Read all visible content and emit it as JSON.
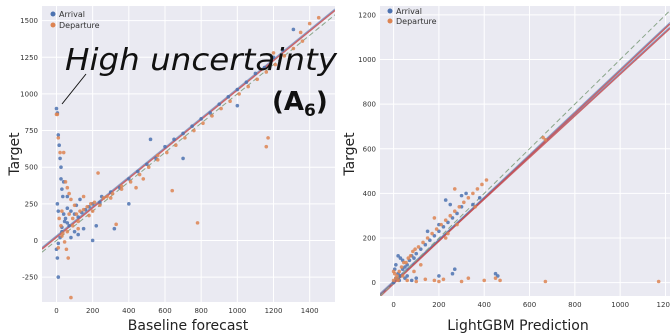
{
  "colors": {
    "arrival": "#4c72b0",
    "departure": "#dd8452",
    "plot_bg": "#eaeaf2",
    "grid": "#ffffff",
    "fit_line": "#c44e52",
    "diag_line": "#8aa58a"
  },
  "annotation": {
    "high_uncertainty": "High uncertainty",
    "panel_label_main": "(A",
    "panel_label_sub": "6",
    "panel_label_close": ")"
  },
  "chart_data": [
    {
      "type": "scatter",
      "xlabel": "Baseline forecast",
      "ylabel": "Target",
      "xlim": [
        -80,
        1540
      ],
      "ylim": [
        -420,
        1600
      ],
      "xticks": [
        0,
        200,
        400,
        600,
        800,
        1000,
        1200,
        1400
      ],
      "yticks": [
        -250,
        0,
        250,
        500,
        750,
        1000,
        1250,
        1500
      ],
      "grid": true,
      "legend_position": "top-left",
      "series": [
        {
          "name": "Arrival",
          "points": [
            [
              0,
              900
            ],
            [
              5,
              870
            ],
            [
              10,
              720
            ],
            [
              15,
              650
            ],
            [
              20,
              560
            ],
            [
              25,
              420
            ],
            [
              30,
              350
            ],
            [
              35,
              300
            ],
            [
              5,
              250
            ],
            [
              10,
              200
            ],
            [
              40,
              180
            ],
            [
              50,
              150
            ],
            [
              60,
              120
            ],
            [
              70,
              100
            ],
            [
              30,
              60
            ],
            [
              20,
              20
            ],
            [
              10,
              -20
            ],
            [
              0,
              -60
            ],
            [
              5,
              -120
            ],
            [
              10,
              -250
            ],
            [
              60,
              220
            ],
            [
              80,
              200
            ],
            [
              100,
              180
            ],
            [
              120,
              160
            ],
            [
              140,
              190
            ],
            [
              160,
              210
            ],
            [
              180,
              230
            ],
            [
              200,
              250
            ],
            [
              250,
              300
            ],
            [
              300,
              330
            ],
            [
              350,
              360
            ],
            [
              400,
              420
            ],
            [
              450,
              470
            ],
            [
              500,
              520
            ],
            [
              550,
              560
            ],
            [
              600,
              640
            ],
            [
              650,
              690
            ],
            [
              700,
              730
            ],
            [
              750,
              780
            ],
            [
              800,
              830
            ],
            [
              850,
              870
            ],
            [
              900,
              930
            ],
            [
              950,
              980
            ],
            [
              1000,
              1030
            ],
            [
              1050,
              1080
            ],
            [
              1100,
              1140
            ],
            [
              1150,
              1180
            ],
            [
              1200,
              1250
            ],
            [
              520,
              690
            ],
            [
              130,
              280
            ],
            [
              220,
              100
            ],
            [
              320,
              80
            ],
            [
              400,
              250
            ],
            [
              120,
              40
            ],
            [
              60,
              300
            ],
            [
              40,
              400
            ],
            [
              25,
              500
            ],
            [
              200,
              0
            ],
            [
              100,
              60
            ],
            [
              150,
              80
            ],
            [
              1310,
              1440
            ],
            [
              1250,
              1300
            ],
            [
              1000,
              920
            ],
            [
              700,
              560
            ],
            [
              30,
              90
            ],
            [
              45,
              130
            ],
            [
              80,
              20
            ],
            [
              110,
              240
            ],
            [
              240,
              260
            ]
          ]
        },
        {
          "name": "Departure",
          "points": [
            [
              0,
              860
            ],
            [
              5,
              860
            ],
            [
              10,
              700
            ],
            [
              20,
              600
            ],
            [
              40,
              600
            ],
            [
              50,
              400
            ],
            [
              60,
              360
            ],
            [
              70,
              320
            ],
            [
              80,
              280
            ],
            [
              30,
              200
            ],
            [
              15,
              150
            ],
            [
              25,
              100
            ],
            [
              35,
              50
            ],
            [
              45,
              -10
            ],
            [
              55,
              -60
            ],
            [
              65,
              -120
            ],
            [
              80,
              -390
            ],
            [
              90,
              150
            ],
            [
              110,
              180
            ],
            [
              130,
              200
            ],
            [
              150,
              210
            ],
            [
              170,
              230
            ],
            [
              190,
              250
            ],
            [
              210,
              260
            ],
            [
              260,
              290
            ],
            [
              310,
              320
            ],
            [
              360,
              350
            ],
            [
              410,
              400
            ],
            [
              460,
              450
            ],
            [
              510,
              500
            ],
            [
              560,
              550
            ],
            [
              610,
              600
            ],
            [
              660,
              650
            ],
            [
              710,
              700
            ],
            [
              760,
              750
            ],
            [
              810,
              800
            ],
            [
              860,
              850
            ],
            [
              910,
              900
            ],
            [
              960,
              950
            ],
            [
              1010,
              1000
            ],
            [
              1060,
              1050
            ],
            [
              1110,
              1100
            ],
            [
              1160,
              1150
            ],
            [
              1210,
              1200
            ],
            [
              1260,
              1260
            ],
            [
              1310,
              1310
            ],
            [
              1360,
              1360
            ],
            [
              1160,
              640
            ],
            [
              1170,
              700
            ],
            [
              780,
              120
            ],
            [
              640,
              340
            ],
            [
              230,
              460
            ],
            [
              330,
              110
            ],
            [
              120,
              80
            ],
            [
              200,
              200
            ],
            [
              150,
              300
            ],
            [
              100,
              240
            ],
            [
              70,
              180
            ],
            [
              440,
              360
            ],
            [
              480,
              420
            ],
            [
              560,
              580
            ],
            [
              360,
              370
            ],
            [
              280,
              300
            ],
            [
              90,
              100
            ],
            [
              30,
              30
            ],
            [
              10,
              -50
            ],
            [
              60,
              60
            ],
            [
              120,
              130
            ],
            [
              180,
              170
            ],
            [
              240,
              240
            ],
            [
              300,
              290
            ],
            [
              1200,
              1280
            ],
            [
              1350,
              1420
            ],
            [
              1400,
              1480
            ],
            [
              1450,
              1520
            ]
          ]
        }
      ],
      "lines": [
        {
          "name": "fit",
          "x": [
            -80,
            1540
          ],
          "y": [
            -58,
            1570
          ]
        },
        {
          "name": "diag",
          "x": [
            -80,
            1540
          ],
          "y": [
            -80,
            1540
          ]
        }
      ]
    },
    {
      "type": "scatter",
      "xlabel": "LightGBM Prediction",
      "ylabel": "Target",
      "xlim": [
        -60,
        1220
      ],
      "ylim": [
        -60,
        1240
      ],
      "xticks": [
        0,
        200,
        400,
        600,
        800,
        1000,
        1200
      ],
      "yticks": [
        0,
        200,
        400,
        600,
        800,
        1000,
        1200
      ],
      "grid": true,
      "legend_position": "top-left",
      "series": [
        {
          "name": "Arrival",
          "points": [
            [
              0,
              0
            ],
            [
              10,
              20
            ],
            [
              20,
              40
            ],
            [
              30,
              30
            ],
            [
              40,
              60
            ],
            [
              50,
              70
            ],
            [
              60,
              80
            ],
            [
              70,
              100
            ],
            [
              80,
              120
            ],
            [
              90,
              110
            ],
            [
              100,
              130
            ],
            [
              120,
              150
            ],
            [
              140,
              170
            ],
            [
              160,
              190
            ],
            [
              180,
              210
            ],
            [
              200,
              230
            ],
            [
              220,
              250
            ],
            [
              240,
              270
            ],
            [
              260,
              290
            ],
            [
              280,
              310
            ],
            [
              300,
              340
            ],
            [
              20,
              120
            ],
            [
              30,
              110
            ],
            [
              40,
              100
            ],
            [
              10,
              80
            ],
            [
              5,
              60
            ],
            [
              25,
              10
            ],
            [
              50,
              20
            ],
            [
              80,
              10
            ],
            [
              150,
              230
            ],
            [
              200,
              260
            ],
            [
              250,
              350
            ],
            [
              230,
              370
            ],
            [
              300,
              390
            ],
            [
              320,
              400
            ],
            [
              450,
              40
            ],
            [
              460,
              30
            ],
            [
              260,
              40
            ],
            [
              200,
              30
            ],
            [
              100,
              20
            ],
            [
              60,
              30
            ],
            [
              350,
              350
            ],
            [
              380,
              380
            ],
            [
              270,
              60
            ]
          ]
        },
        {
          "name": "Departure",
          "points": [
            [
              0,
              10
            ],
            [
              15,
              30
            ],
            [
              25,
              50
            ],
            [
              35,
              70
            ],
            [
              45,
              90
            ],
            [
              55,
              90
            ],
            [
              65,
              110
            ],
            [
              75,
              120
            ],
            [
              85,
              140
            ],
            [
              95,
              150
            ],
            [
              110,
              160
            ],
            [
              130,
              180
            ],
            [
              150,
              200
            ],
            [
              170,
              220
            ],
            [
              190,
              240
            ],
            [
              210,
              260
            ],
            [
              230,
              280
            ],
            [
              250,
              300
            ],
            [
              270,
              320
            ],
            [
              290,
              340
            ],
            [
              310,
              360
            ],
            [
              330,
              380
            ],
            [
              350,
              400
            ],
            [
              370,
              420
            ],
            [
              390,
              440
            ],
            [
              410,
              460
            ],
            [
              660,
              650
            ],
            [
              670,
              640
            ],
            [
              10,
              20
            ],
            [
              20,
              10
            ],
            [
              40,
              30
            ],
            [
              60,
              10
            ],
            [
              100,
              5
            ],
            [
              140,
              15
            ],
            [
              180,
              10
            ],
            [
              200,
              5
            ],
            [
              220,
              15
            ],
            [
              300,
              5
            ],
            [
              330,
              20
            ],
            [
              400,
              10
            ],
            [
              450,
              20
            ],
            [
              470,
              10
            ],
            [
              670,
              5
            ],
            [
              1170,
              5
            ],
            [
              0,
              50
            ],
            [
              5,
              40
            ],
            [
              270,
              420
            ],
            [
              180,
              290
            ],
            [
              120,
              80
            ],
            [
              90,
              50
            ],
            [
              230,
              200
            ],
            [
              240,
              220
            ],
            [
              280,
              260
            ],
            [
              360,
              340
            ]
          ]
        }
      ],
      "lines": [
        {
          "name": "fit",
          "x": [
            -60,
            1220
          ],
          "y": [
            -55,
            1140
          ]
        },
        {
          "name": "fit2",
          "x": [
            -60,
            1220
          ],
          "y": [
            -62,
            1160
          ]
        },
        {
          "name": "diag",
          "x": [
            -60,
            1220
          ],
          "y": [
            -60,
            1220
          ]
        }
      ]
    }
  ]
}
